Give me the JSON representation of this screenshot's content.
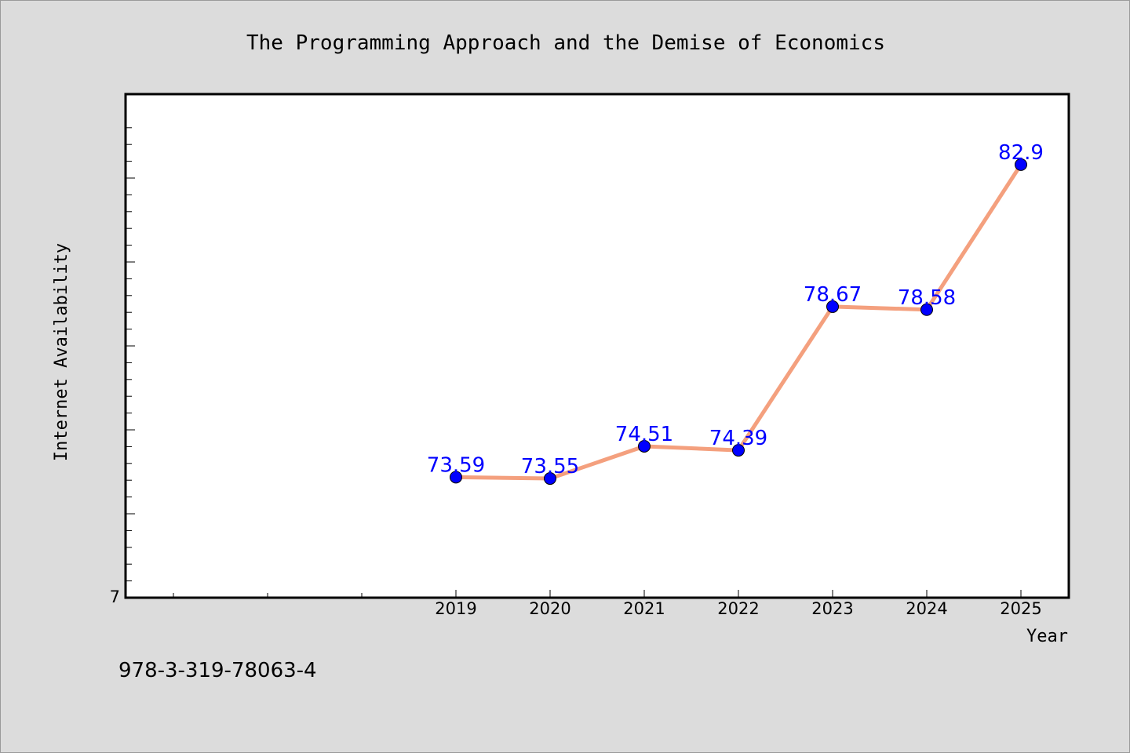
{
  "chart_data": {
    "type": "line",
    "title": "The Programming Approach and the Demise of Economics",
    "xlabel": "Year",
    "ylabel": "Internet Availability",
    "x": [
      "2019",
      "2020",
      "2021",
      "2022",
      "2023",
      "2024",
      "2025"
    ],
    "series": [
      {
        "values": [
          73.59,
          73.55,
          74.51,
          74.39,
          78.67,
          78.58,
          82.9
        ],
        "labels": [
          "73.59",
          "73.55",
          "74.51",
          "74.39",
          "78.67",
          "78.58",
          "82.9"
        ]
      }
    ],
    "ylim": [
      70,
      85
    ],
    "y_tick_labels": [
      "7"
    ],
    "grid": false,
    "legend": false,
    "line_color": "#f4a07e",
    "marker_color": "#0000ff",
    "label_color": "#0000ff"
  },
  "footer": {
    "isbn": "978-3-319-78063-4"
  }
}
